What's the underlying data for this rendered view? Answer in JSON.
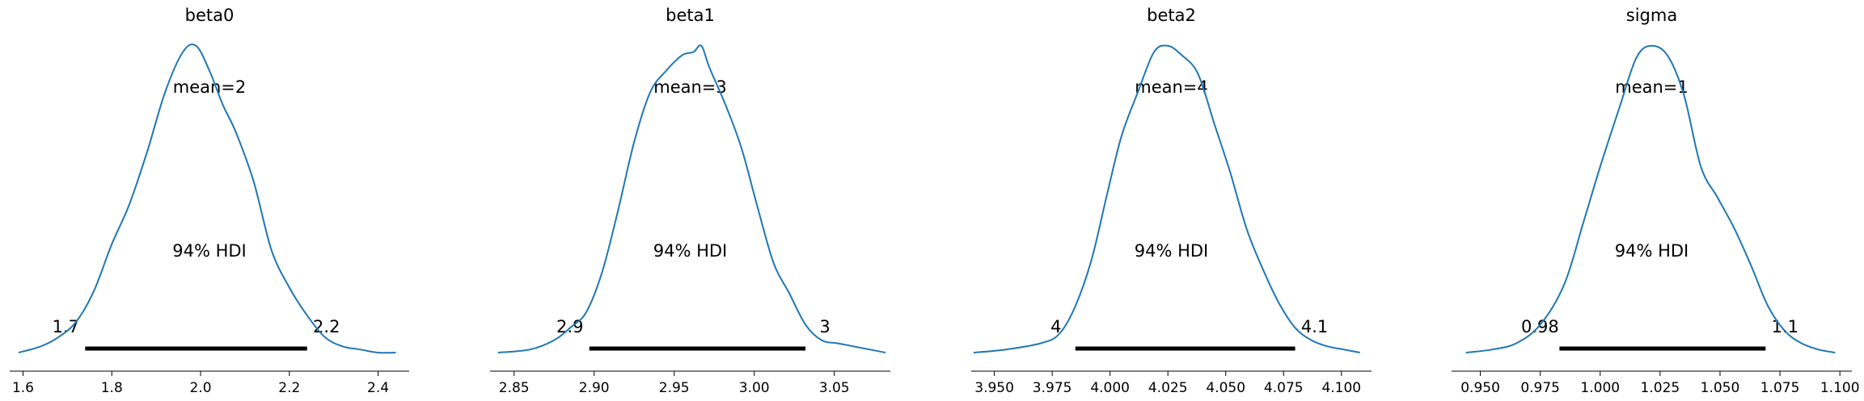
{
  "figure": {
    "colors": {
      "density_line": "#1f77b4",
      "hdi_bar": "#000000",
      "axis": "#000000",
      "background": "#ffffff"
    },
    "layout": "1x4 grid of posterior density plots",
    "hdi_label": "94% HDI"
  },
  "chart_data": [
    {
      "type": "line",
      "title": "beta0",
      "mean_label": "mean=2",
      "hdi_label": "94% HDI",
      "hdi": [
        1.74,
        2.24
      ],
      "hdi_labels": [
        "1.7",
        "2.2"
      ],
      "xlim": [
        1.57,
        2.47
      ],
      "ylim": [
        0,
        1
      ],
      "grid": false,
      "xticks": [
        1.6,
        1.8,
        2.0,
        2.2,
        2.4
      ],
      "xtick_labels": [
        "1.6",
        "1.8",
        "2.0",
        "2.2",
        "2.4"
      ],
      "density": {
        "x": [
          1.59,
          1.64,
          1.68,
          1.72,
          1.76,
          1.8,
          1.84,
          1.88,
          1.92,
          1.96,
          1.99,
          2.02,
          2.05,
          2.08,
          2.12,
          2.16,
          2.2,
          2.24,
          2.28,
          2.32,
          2.36,
          2.4,
          2.44
        ],
        "y": [
          0.0,
          0.02,
          0.05,
          0.1,
          0.2,
          0.35,
          0.48,
          0.65,
          0.84,
          0.97,
          0.99,
          0.91,
          0.8,
          0.71,
          0.55,
          0.33,
          0.21,
          0.12,
          0.05,
          0.02,
          0.01,
          0.0,
          0.0
        ]
      }
    },
    {
      "type": "line",
      "title": "beta1",
      "mean_label": "mean=3",
      "hdi_label": "94% HDI",
      "hdi": [
        2.897,
        3.032
      ],
      "hdi_labels": [
        "2.9",
        "3"
      ],
      "xlim": [
        2.835,
        3.085
      ],
      "ylim": [
        0,
        1
      ],
      "grid": false,
      "xticks": [
        2.85,
        2.9,
        2.95,
        3.0,
        3.05
      ],
      "xtick_labels": [
        "2.85",
        "2.90",
        "2.95",
        "3.00",
        "3.05"
      ],
      "density": {
        "x": [
          2.84,
          2.86,
          2.875,
          2.885,
          2.895,
          2.905,
          2.915,
          2.925,
          2.935,
          2.945,
          2.955,
          2.962,
          2.967,
          2.972,
          2.982,
          2.992,
          3.002,
          3.012,
          3.022,
          3.032,
          3.042,
          3.052,
          3.062,
          3.072,
          3.082
        ],
        "y": [
          0.0,
          0.01,
          0.04,
          0.08,
          0.13,
          0.26,
          0.46,
          0.68,
          0.84,
          0.91,
          0.96,
          0.97,
          0.99,
          0.92,
          0.8,
          0.66,
          0.47,
          0.29,
          0.19,
          0.09,
          0.04,
          0.03,
          0.02,
          0.01,
          0.0
        ]
      }
    },
    {
      "type": "line",
      "title": "beta2",
      "mean_label": "mean=4",
      "hdi_label": "94% HDI",
      "hdi": [
        3.985,
        4.08
      ],
      "hdi_labels": [
        "4",
        "4.1"
      ],
      "xlim": [
        3.94,
        4.113
      ],
      "ylim": [
        0,
        1
      ],
      "grid": false,
      "xticks": [
        3.95,
        3.975,
        4.0,
        4.025,
        4.05,
        4.075,
        4.1
      ],
      "xtick_labels": [
        "3.950",
        "3.975",
        "4.000",
        "4.025",
        "4.050",
        "4.075",
        "4.100"
      ],
      "density": {
        "x": [
          3.941,
          3.955,
          3.97,
          3.978,
          3.985,
          3.992,
          3.999,
          4.005,
          4.012,
          4.019,
          4.025,
          4.031,
          4.038,
          4.045,
          4.052,
          4.059,
          4.066,
          4.073,
          4.08,
          4.087,
          4.094,
          4.101,
          4.108
        ],
        "y": [
          0.0,
          0.01,
          0.03,
          0.06,
          0.15,
          0.3,
          0.52,
          0.7,
          0.84,
          0.97,
          0.99,
          0.96,
          0.9,
          0.74,
          0.58,
          0.4,
          0.27,
          0.16,
          0.08,
          0.04,
          0.02,
          0.01,
          0.0
        ]
      }
    },
    {
      "type": "line",
      "title": "sigma",
      "mean_label": "mean=1",
      "hdi_label": "94% HDI",
      "hdi": [
        0.983,
        1.069
      ],
      "hdi_labels": [
        "0.98",
        "1.1"
      ],
      "xlim": [
        0.938,
        1.105
      ],
      "ylim": [
        0,
        1
      ],
      "grid": false,
      "xticks": [
        0.95,
        0.975,
        1.0,
        1.025,
        1.05,
        1.075,
        1.1
      ],
      "xtick_labels": [
        "0.950",
        "0.975",
        "1.000",
        "1.025",
        "1.050",
        "1.075",
        "1.100"
      ],
      "density": {
        "x": [
          0.944,
          0.955,
          0.965,
          0.975,
          0.985,
          0.993,
          1.0,
          1.008,
          1.015,
          1.021,
          1.028,
          1.035,
          1.042,
          1.049,
          1.056,
          1.063,
          1.07,
          1.077,
          1.084,
          1.091,
          1.098
        ],
        "y": [
          0.0,
          0.01,
          0.03,
          0.09,
          0.22,
          0.42,
          0.6,
          0.79,
          0.95,
          0.99,
          0.96,
          0.83,
          0.6,
          0.5,
          0.4,
          0.28,
          0.15,
          0.07,
          0.03,
          0.01,
          0.0
        ]
      }
    }
  ]
}
